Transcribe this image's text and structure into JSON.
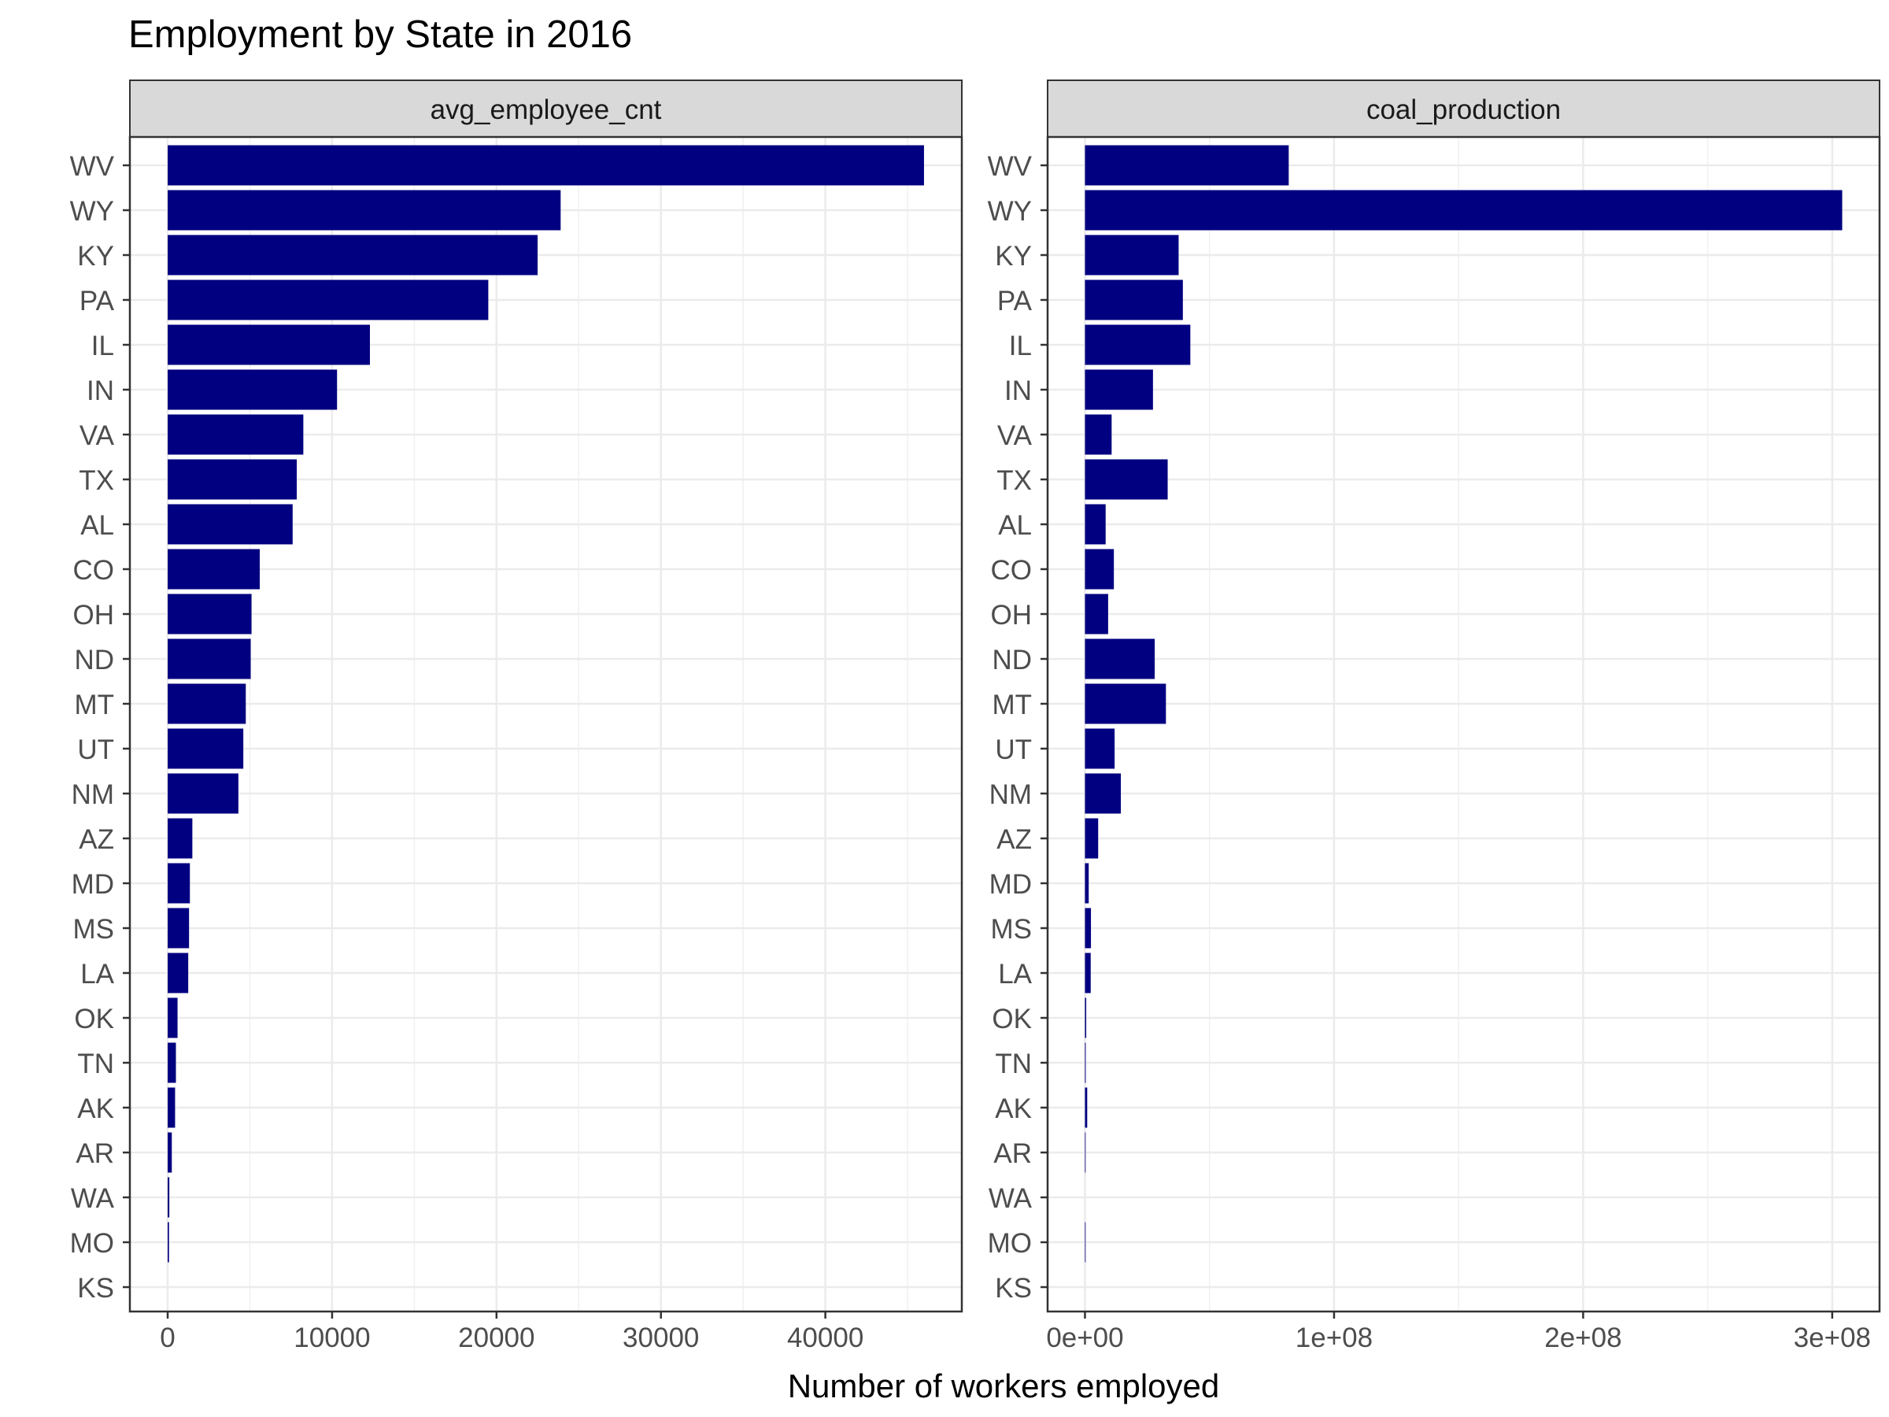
{
  "chart_data": {
    "type": "bar",
    "orientation": "horizontal",
    "title": "Employment by State in 2016",
    "xlabel": "Number of workers employed",
    "ylabel": "",
    "bar_color": "#000080",
    "strip_color": "#d9d9d9",
    "grid": true,
    "categories": [
      "WV",
      "WY",
      "KY",
      "PA",
      "IL",
      "IN",
      "VA",
      "TX",
      "AL",
      "CO",
      "OH",
      "ND",
      "MT",
      "UT",
      "NM",
      "AZ",
      "MD",
      "MS",
      "LA",
      "OK",
      "TN",
      "AK",
      "AR",
      "WA",
      "MO",
      "KS"
    ],
    "panels": [
      {
        "name": "avg_employee_cnt",
        "xlim": [
          -2300,
          48300
        ],
        "ticks": [
          0,
          10000,
          20000,
          30000,
          40000
        ],
        "tick_labels": [
          "0",
          "10000",
          "20000",
          "30000",
          "40000"
        ],
        "values": [
          46000,
          23900,
          22500,
          19500,
          12300,
          10300,
          8250,
          7850,
          7600,
          5600,
          5100,
          5050,
          4750,
          4600,
          4300,
          1500,
          1350,
          1300,
          1250,
          600,
          500,
          450,
          250,
          100,
          80,
          0
        ]
      },
      {
        "name": "coal_production",
        "xlim": [
          -15000000,
          319000000
        ],
        "ticks": [
          0,
          100000000,
          200000000,
          300000000
        ],
        "tick_labels": [
          "0e+00",
          "1e+08",
          "2e+08",
          "3e+08"
        ],
        "values": [
          81800000,
          304000000,
          37600000,
          39300000,
          42300000,
          27300000,
          10700000,
          33200000,
          8300000,
          11600000,
          9300000,
          28000000,
          32500000,
          11900000,
          14400000,
          5300000,
          1500000,
          2400000,
          2300000,
          500000,
          300000,
          900000,
          50000,
          0,
          200000,
          0
        ]
      }
    ]
  }
}
